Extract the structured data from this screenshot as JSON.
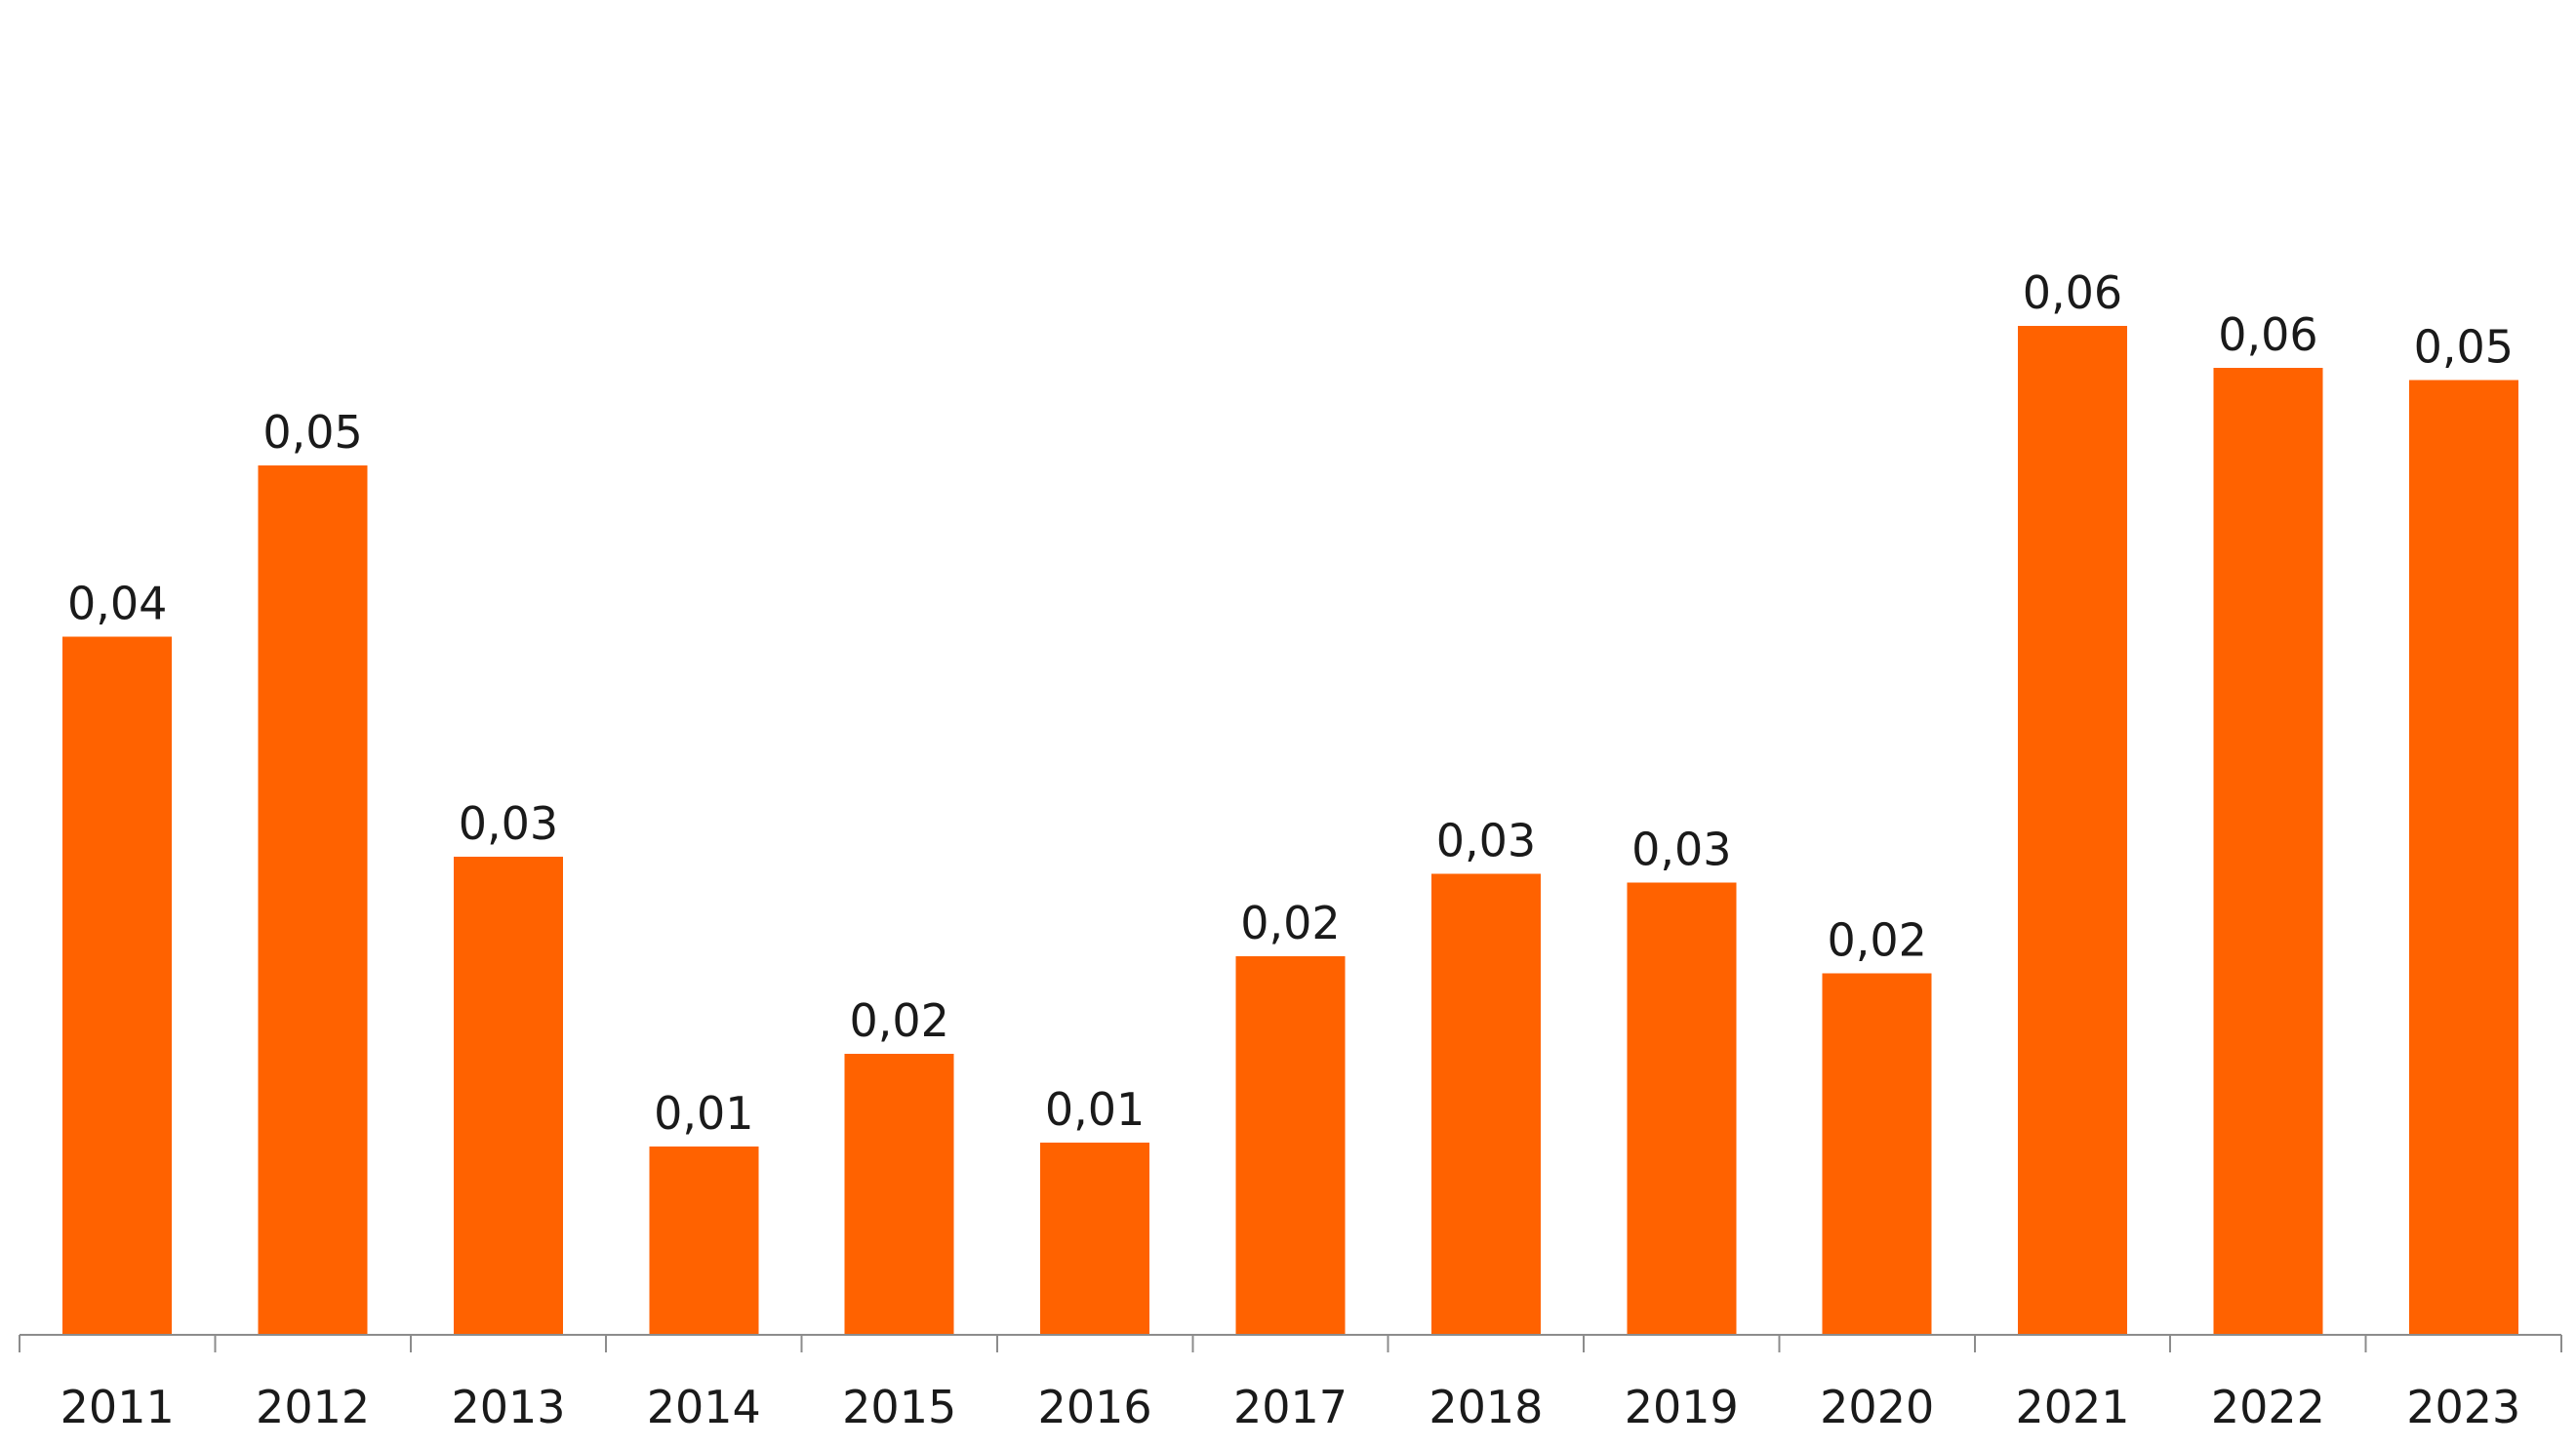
{
  "chart_data": {
    "type": "bar",
    "title": "",
    "xlabel": "",
    "ylabel": "",
    "categories": [
      "2011",
      "2012",
      "2013",
      "2014",
      "2015",
      "2016",
      "2017",
      "2018",
      "2019",
      "2020",
      "2021",
      "2022",
      "2023"
    ],
    "values": [
      0.04,
      0.0498,
      0.0274,
      0.0108,
      0.0161,
      0.011,
      0.0217,
      0.0264,
      0.0259,
      0.0207,
      0.0578,
      0.0554,
      0.0547
    ],
    "data_labels": [
      "0,04",
      "0,05",
      "0,03",
      "0,01",
      "0,02",
      "0,01",
      "0,02",
      "0,03",
      "0,03",
      "0,02",
      "0,06",
      "0,06",
      "0,05"
    ],
    "ylim": [
      0,
      0.072
    ],
    "grid": false,
    "legend": "none",
    "colors": {
      "bar": "#FF6200",
      "axis": "#8C8C8C",
      "text": "#1A1A1A"
    }
  }
}
